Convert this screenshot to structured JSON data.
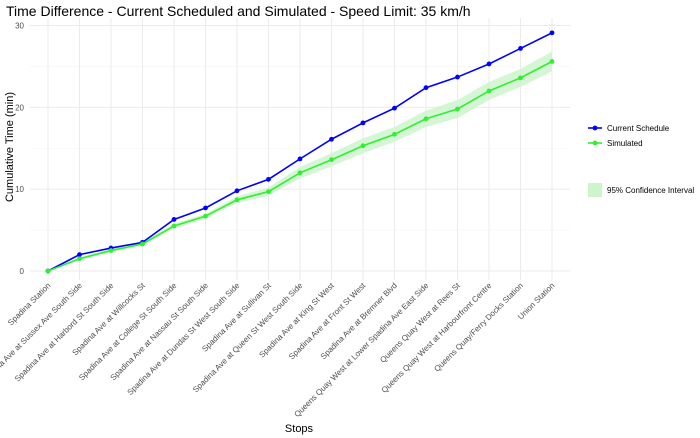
{
  "chart_data": {
    "type": "line",
    "title": "Time Difference - Current Scheduled and Simulated - Speed Limit: 35 km/h",
    "xlabel": "Stops",
    "ylabel": "Cumulative Time (min)",
    "ylim": [
      0,
      30
    ],
    "yticks": [
      0,
      10,
      20,
      30
    ],
    "grid": true,
    "legend_position": "right",
    "categories": [
      "Spadina Station",
      "Spadina Ave at Sussex Ave South Side",
      "Spadina Ave at Harbord St South Side",
      "Spadina Ave at Willcocks St",
      "Spadina Ave at College St South Side",
      "Spadina Ave at Nassau St South Side",
      "Spadina Ave at Dundas St West South Side",
      "Spadina Ave at Sullivan St",
      "Spadina Ave at Queen St West South Side",
      "Spadina Ave at King St West",
      "Spadina Ave at Front St West",
      "Spadina Ave at Bremner Blvd",
      "Queens Quay West at Lower Spadina Ave East Side",
      "Queens Quay West at Rees St",
      "Queens Quay West at Harbourfront Centre",
      "Queens Quay/Ferry Docks Station",
      "Union Station"
    ],
    "series": [
      {
        "name": "Current Schedule",
        "color": "#0000ff",
        "values": [
          0,
          2.0,
          2.8,
          3.5,
          6.3,
          7.7,
          9.8,
          11.2,
          13.7,
          16.1,
          18.1,
          19.9,
          22.4,
          23.7,
          25.3,
          27.2,
          29.1
        ]
      },
      {
        "name": "Simulated",
        "color": "#33ee33",
        "values": [
          0,
          1.5,
          2.5,
          3.3,
          5.5,
          6.7,
          8.7,
          9.7,
          12.0,
          13.6,
          15.3,
          16.7,
          18.6,
          19.8,
          22.0,
          23.6,
          25.6
        ],
        "ci_lower": [
          0,
          1.3,
          2.3,
          3.1,
          5.2,
          6.4,
          8.3,
          9.2,
          11.3,
          12.8,
          14.4,
          15.8,
          17.6,
          18.7,
          20.9,
          22.5,
          24.4
        ],
        "ci_upper": [
          0,
          1.7,
          2.7,
          3.5,
          5.8,
          7.0,
          9.1,
          10.2,
          12.7,
          14.4,
          16.2,
          17.6,
          19.6,
          20.9,
          23.1,
          24.7,
          26.8
        ]
      }
    ],
    "band": {
      "name": "95% Confidence Interval",
      "color": "#ccf5cc"
    }
  }
}
